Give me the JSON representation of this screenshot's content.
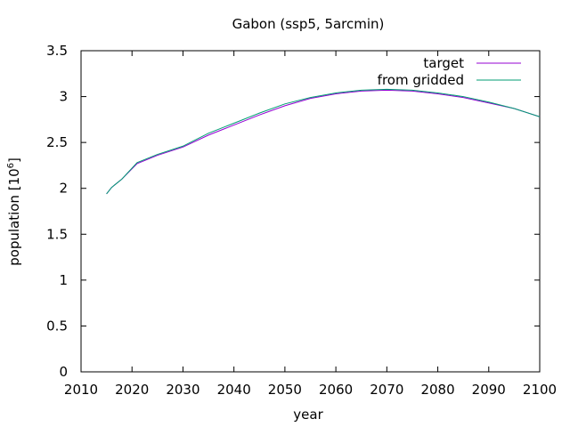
{
  "chart_data": {
    "type": "line",
    "title": "Gabon (ssp5, 5arcmin)",
    "xlabel": "year",
    "ylabel": "population [10",
    "ylabel_superscript": "6",
    "ylabel_suffix": "]",
    "xlim": [
      2010,
      2100
    ],
    "ylim": [
      0,
      3.5
    ],
    "x_ticks": [
      2010,
      2020,
      2030,
      2040,
      2050,
      2060,
      2070,
      2080,
      2090,
      2100
    ],
    "y_ticks": [
      0,
      0.5,
      1,
      1.5,
      2,
      2.5,
      3,
      3.5
    ],
    "y_tick_labels": [
      "0",
      "0.5",
      "1",
      "1.5",
      "2",
      "2.5",
      "3",
      "3.5"
    ],
    "grid": false,
    "legend_position": "top-right",
    "series": [
      {
        "name": "target",
        "color": "#9400d3",
        "x": [
          2015,
          2016,
          2018,
          2021,
          2025,
          2030,
          2035,
          2040,
          2045,
          2050,
          2055,
          2060,
          2065,
          2070,
          2075,
          2080,
          2085,
          2090,
          2095,
          2100
        ],
        "y": [
          1.94,
          2.01,
          2.1,
          2.27,
          2.36,
          2.45,
          2.58,
          2.69,
          2.8,
          2.9,
          2.98,
          3.03,
          3.06,
          3.07,
          3.06,
          3.03,
          2.99,
          2.93,
          2.87,
          2.78
        ]
      },
      {
        "name": "from gridded",
        "color": "#009e73",
        "x": [
          2015,
          2016,
          2018,
          2021,
          2025,
          2030,
          2035,
          2040,
          2045,
          2050,
          2055,
          2060,
          2065,
          2070,
          2075,
          2080,
          2085,
          2090,
          2095,
          2100
        ],
        "y": [
          1.94,
          2.01,
          2.1,
          2.28,
          2.37,
          2.46,
          2.6,
          2.71,
          2.82,
          2.92,
          2.99,
          3.04,
          3.07,
          3.08,
          3.07,
          3.04,
          3.0,
          2.94,
          2.87,
          2.78
        ]
      }
    ]
  }
}
